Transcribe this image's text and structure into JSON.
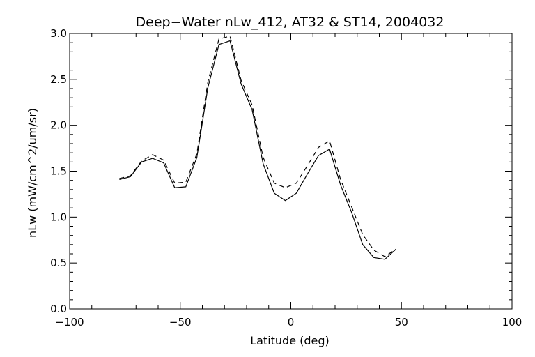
{
  "chart_data": {
    "type": "line",
    "title": "Deep−Water nLw_412, AT32 & ST14, 2004032",
    "xlabel": "Latitude (deg)",
    "ylabel": "nLw (mW/cm^2/um/sr)",
    "xlim": [
      -100,
      100
    ],
    "ylim": [
      0.0,
      3.0
    ],
    "xticks": [
      -100,
      -50,
      0,
      50,
      100
    ],
    "xtick_labels": [
      "−100",
      "−50",
      "0",
      "50",
      "100"
    ],
    "yticks": [
      0.0,
      0.5,
      1.0,
      1.5,
      2.0,
      2.5,
      3.0
    ],
    "ytick_labels": [
      "0.0",
      "0.5",
      "1.0",
      "1.5",
      "2.0",
      "2.5",
      "3.0"
    ],
    "grid": false,
    "legend": "none",
    "series": [
      {
        "style": "solid",
        "x": [
          -77.5,
          -72.5,
          -67.5,
          -62.5,
          -57.5,
          -52.5,
          -47.5,
          -42.5,
          -37.5,
          -32.5,
          -27.5,
          -22.5,
          -17.5,
          -12.5,
          -7.5,
          -2.5,
          2.5,
          7.5,
          12.5,
          17.5,
          22.5,
          27.5,
          32.5,
          37.5,
          42.5,
          47.5
        ],
        "y": [
          1.41,
          1.44,
          1.6,
          1.64,
          1.59,
          1.32,
          1.33,
          1.65,
          2.41,
          2.88,
          2.92,
          2.45,
          2.17,
          1.58,
          1.26,
          1.18,
          1.26,
          1.47,
          1.67,
          1.74,
          1.35,
          1.05,
          0.7,
          0.56,
          0.54,
          0.65
        ]
      },
      {
        "style": "dashed",
        "x": [
          -77.5,
          -72.5,
          -67.5,
          -62.5,
          -57.5,
          -52.5,
          -47.5,
          -42.5,
          -37.5,
          -32.5,
          -27.5,
          -22.5,
          -17.5,
          -12.5,
          -7.5,
          -2.5,
          2.5,
          7.5,
          12.5,
          17.5,
          22.5,
          27.5,
          32.5,
          37.5,
          42.5,
          47.5
        ],
        "y": [
          1.42,
          1.45,
          1.61,
          1.68,
          1.62,
          1.37,
          1.38,
          1.69,
          2.47,
          2.94,
          2.97,
          2.49,
          2.22,
          1.65,
          1.37,
          1.32,
          1.37,
          1.56,
          1.76,
          1.83,
          1.41,
          1.11,
          0.81,
          0.64,
          0.57,
          0.65
        ]
      }
    ]
  }
}
